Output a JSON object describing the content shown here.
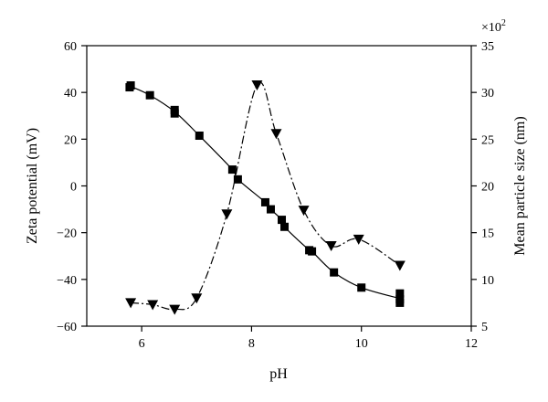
{
  "chart_data": {
    "type": "line",
    "xlabel": "pH",
    "ylabel_left": "Zeta potential (mV)",
    "ylabel_right": "Mean particle size (nm)",
    "right_multiplier": "×10",
    "right_multiplier_exp": "2",
    "xlim": [
      5,
      12
    ],
    "ylim_left": [
      -60,
      60
    ],
    "ylim_right": [
      5,
      35
    ],
    "x_ticks": [
      6,
      8,
      10,
      12
    ],
    "y_left_ticks": [
      -60,
      -40,
      -20,
      0,
      20,
      40,
      60
    ],
    "y_right_ticks": [
      5,
      10,
      15,
      20,
      25,
      30,
      35
    ],
    "grid": false,
    "series": [
      {
        "axis": "left",
        "marker": "square",
        "points": [
          [
            5.8,
            43.0
          ],
          [
            5.78,
            42.2
          ],
          [
            6.15,
            38.8
          ],
          [
            6.6,
            32.5
          ],
          [
            6.6,
            31.0
          ],
          [
            7.05,
            21.5
          ],
          [
            7.65,
            7.0
          ],
          [
            7.75,
            2.8
          ],
          [
            8.25,
            -7.0
          ],
          [
            8.35,
            -10.0
          ],
          [
            8.55,
            -14.5
          ],
          [
            8.6,
            -17.5
          ],
          [
            9.05,
            -27.5
          ],
          [
            9.1,
            -28.0
          ],
          [
            9.5,
            -37.0
          ],
          [
            10.0,
            -43.5
          ],
          [
            10.7,
            -46.0
          ],
          [
            10.7,
            -48.5
          ],
          [
            10.7,
            -50.0
          ]
        ]
      },
      {
        "axis": "right",
        "marker": "triangle-down",
        "points": [
          [
            5.8,
            7.5
          ],
          [
            6.2,
            7.3
          ],
          [
            6.6,
            6.8
          ],
          [
            7.0,
            8.0
          ],
          [
            7.55,
            17.0
          ],
          [
            8.1,
            30.8
          ],
          [
            8.45,
            25.6
          ],
          [
            8.95,
            17.4
          ],
          [
            9.45,
            13.6
          ],
          [
            9.95,
            14.3
          ],
          [
            10.7,
            11.5
          ]
        ]
      }
    ]
  }
}
